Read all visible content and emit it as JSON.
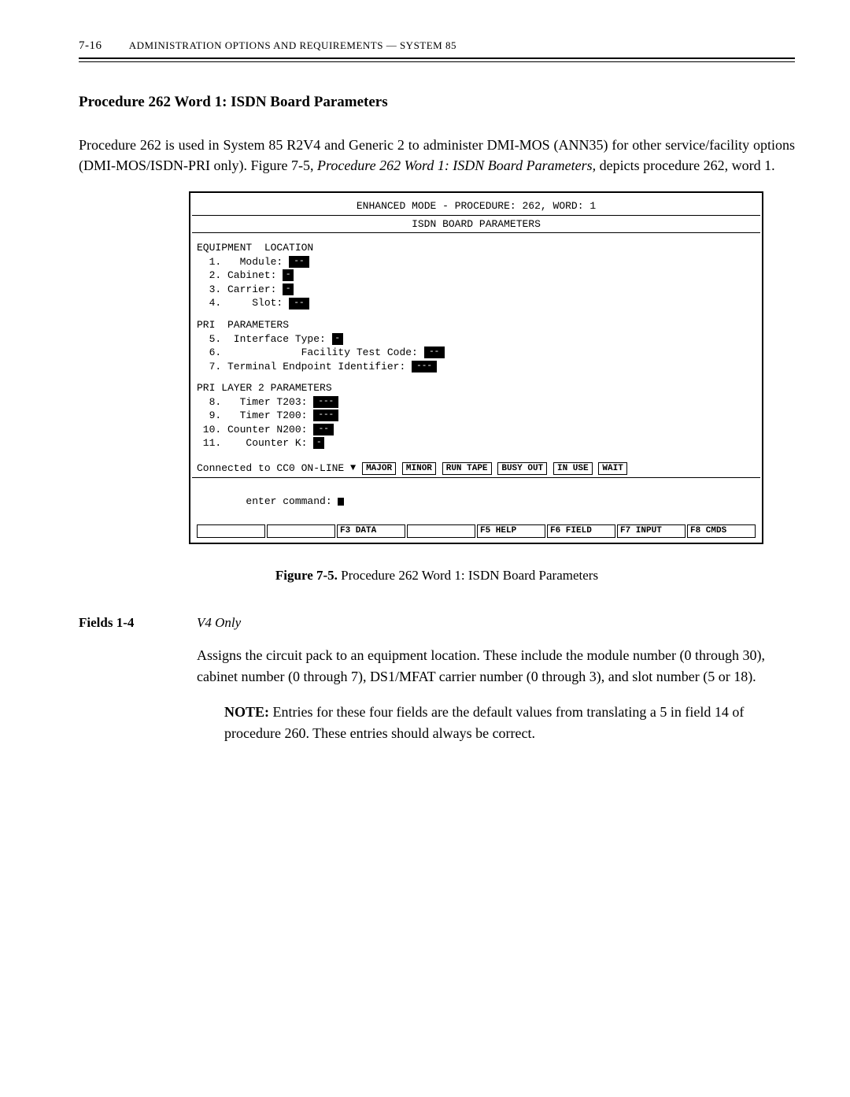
{
  "header": {
    "page": "7-16",
    "title": "ADMINISTRATION OPTIONS AND REQUIREMENTS — SYSTEM 85"
  },
  "heading": "Procedure 262 Word 1: ISDN Board Parameters",
  "intro": {
    "p1a": "Procedure 262 is used in System 85 R2V4 and Generic 2 to administer DMI-MOS (ANN35) for other service/facility options (DMI-MOS/ISDN-PRI only). Figure 7-5, ",
    "p1i": "Procedure 262 Word 1: ISDN Board Parameters,",
    "p1b": " depicts procedure 262, word 1."
  },
  "term": {
    "mode": "ENHANCED MODE - PROCEDURE:  262, WORD:  1",
    "subtitle": "ISDN BOARD PARAMETERS",
    "eqhdr": "EQUIPMENT  LOCATION",
    "eq": {
      "l1": "  1.   Module:",
      "l2": "  2. Cabinet:",
      "l3": "  3. Carrier:",
      "l4": "  4.     Slot:"
    },
    "prihdr": "PRI  PARAMETERS",
    "pri": {
      "l5": "  5.  Interface Type:",
      "l6": "  6.             Facility Test Code:",
      "l7": "  7. Terminal Endpoint Identifier:"
    },
    "l2hdr": "PRI LAYER 2 PARAMETERS",
    "layer2": {
      "l8": "  8.   Timer T203:",
      "l9": "  9.   Timer T200:",
      "l10": " 10. Counter N200:",
      "l11": " 11.    Counter K:"
    },
    "conn": "Connected to CC0 ON-LINE ",
    "status": {
      "major": "MAJOR",
      "minor": "MINOR",
      "run": "RUN TAPE",
      "busy": "BUSY OUT",
      "inuse": "IN USE",
      "wait": "WAIT"
    },
    "cmd": "enter command: ",
    "fn": {
      "f1": "",
      "f2": "",
      "f3": "F3 DATA",
      "f4": "",
      "f5": "F5 HELP",
      "f6": "F6 FIELD",
      "f7": "F7 INPUT",
      "f8": "F8 CMDS"
    }
  },
  "caption": {
    "bold": "Figure 7-5.",
    "rest": " Procedure 262 Word 1: ISDN Board Parameters"
  },
  "fields": {
    "label": "Fields 1-4",
    "v4": "V4 Only",
    "p1": "Assigns the circuit pack to an equipment location. These include the module number (0 through 30), cabinet number (0 through 7), DS1/MFAT carrier number (0 through 3), and slot number (5 or 18).",
    "noteB": "NOTE:",
    "note": " Entries for these four fields are the default values from translating a 5 in field 14 of procedure 260. These entries should always be correct."
  },
  "placeholders": {
    "dash2": "--",
    "dash1": "-",
    "dash3": "---"
  }
}
